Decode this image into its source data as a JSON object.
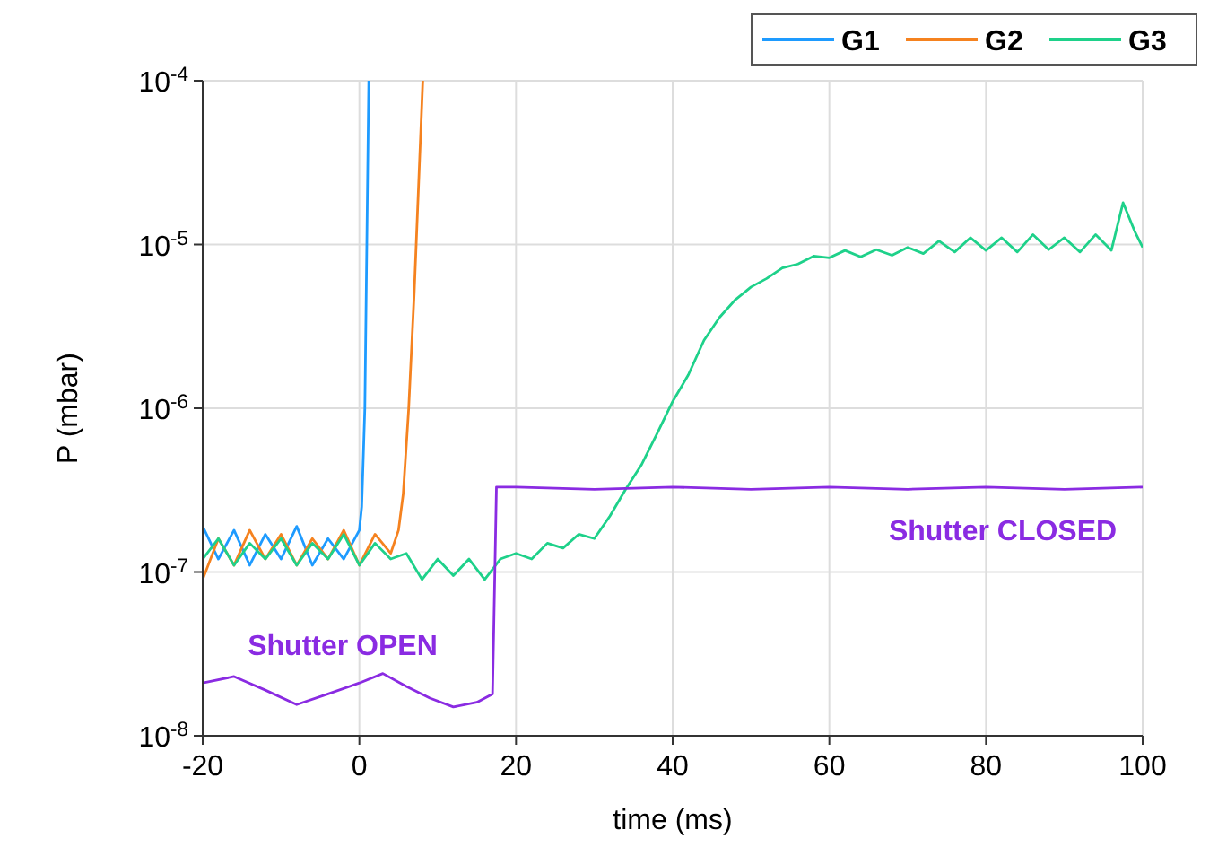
{
  "chart_data": {
    "type": "line",
    "xlabel": "time (ms)",
    "ylabel": "P (mbar)",
    "log": "y",
    "grid": true,
    "legend": "top right",
    "xlim": [
      -20,
      100
    ],
    "xticks": [
      -20,
      0,
      20,
      40,
      60,
      80,
      100
    ],
    "ylim": [
      1e-08,
      0.0001
    ],
    "yticks": [
      {
        "value": 1e-08,
        "label": "10$^{-8}$"
      },
      {
        "value": 1e-07,
        "label": "10$^{-7}$"
      },
      {
        "value": 1e-06,
        "label": "10$^{-6}$"
      },
      {
        "value": 1e-05,
        "label": "10$^{-5}$"
      },
      {
        "value": 0.0001,
        "label": "10$^{-4}$"
      }
    ],
    "series": [
      {
        "name": "G1",
        "color": "#1e9bff",
        "x": [
          -20,
          -18,
          -16,
          -14,
          -12,
          -10,
          -8,
          -6,
          -4,
          -2,
          0,
          0.3,
          0.7,
          1.2
        ],
        "values": [
          1.9e-07,
          1.2e-07,
          1.8e-07,
          1.1e-07,
          1.7e-07,
          1.2e-07,
          1.9e-07,
          1.1e-07,
          1.6e-07,
          1.2e-07,
          1.8e-07,
          2.5e-07,
          1e-06,
          0.0001
        ]
      },
      {
        "name": "G2",
        "color": "#f5821f",
        "x": [
          -20,
          -18,
          -16,
          -14,
          -12,
          -10,
          -8,
          -6,
          -4,
          -2,
          0,
          2,
          4,
          5,
          5.6,
          6.3,
          7,
          8.1
        ],
        "values": [
          9e-08,
          1.6e-07,
          1.1e-07,
          1.8e-07,
          1.2e-07,
          1.7e-07,
          1.1e-07,
          1.6e-07,
          1.2e-07,
          1.8e-07,
          1.1e-07,
          1.7e-07,
          1.3e-07,
          1.8e-07,
          3e-07,
          1e-06,
          5e-06,
          0.0001
        ]
      },
      {
        "name": "G3",
        "color": "#1ed18a",
        "x": [
          -20,
          -18,
          -16,
          -14,
          -12,
          -10,
          -8,
          -6,
          -4,
          -2,
          0,
          2,
          4,
          6,
          8,
          10,
          12,
          14,
          16,
          18,
          20,
          22,
          24,
          26,
          28,
          30,
          32,
          34,
          36,
          38,
          40,
          42,
          44,
          46,
          48,
          50,
          52,
          54,
          56,
          58,
          60,
          62,
          64,
          66,
          68,
          70,
          72,
          74,
          76,
          78,
          80,
          82,
          84,
          86,
          88,
          90,
          92,
          94,
          96,
          97.5,
          99,
          100
        ],
        "values": [
          1.2e-07,
          1.6e-07,
          1.1e-07,
          1.5e-07,
          1.2e-07,
          1.6e-07,
          1.1e-07,
          1.5e-07,
          1.2e-07,
          1.7e-07,
          1.1e-07,
          1.5e-07,
          1.2e-07,
          1.3e-07,
          9e-08,
          1.2e-07,
          9.5e-08,
          1.2e-07,
          9e-08,
          1.2e-07,
          1.3e-07,
          1.2e-07,
          1.5e-07,
          1.4e-07,
          1.7e-07,
          1.6e-07,
          2.2e-07,
          3.2e-07,
          4.5e-07,
          7e-07,
          1.1e-06,
          1.6e-06,
          2.6e-06,
          3.6e-06,
          4.6e-06,
          5.5e-06,
          6.2e-06,
          7.2e-06,
          7.6e-06,
          8.5e-06,
          8.3e-06,
          9.2e-06,
          8.4e-06,
          9.3e-06,
          8.6e-06,
          9.6e-06,
          8.8e-06,
          1.05e-05,
          9e-06,
          1.1e-05,
          9.2e-06,
          1.1e-05,
          9e-06,
          1.15e-05,
          9.3e-06,
          1.1e-05,
          9e-06,
          1.15e-05,
          9.2e-06,
          1.8e-05,
          1.2e-05,
          9.6e-06
        ]
      },
      {
        "color": "#8a2be2",
        "x": [
          -20,
          -16,
          -12,
          -8,
          -4,
          0,
          3,
          6,
          9,
          12,
          15,
          17,
          17.5,
          20,
          30,
          40,
          50,
          60,
          70,
          80,
          90,
          100
        ],
        "values": [
          2.1e-08,
          2.3e-08,
          1.9e-08,
          1.55e-08,
          1.8e-08,
          2.1e-08,
          2.4e-08,
          2e-08,
          1.7e-08,
          1.5e-08,
          1.6e-08,
          1.8e-08,
          3.3e-07,
          3.3e-07,
          3.2e-07,
          3.3e-07,
          3.2e-07,
          3.3e-07,
          3.2e-07,
          3.3e-07,
          3.2e-07,
          3.3e-07
        ]
      }
    ],
    "annotations": [
      "Shutter OPEN",
      "Shutter CLOSED"
    ]
  }
}
